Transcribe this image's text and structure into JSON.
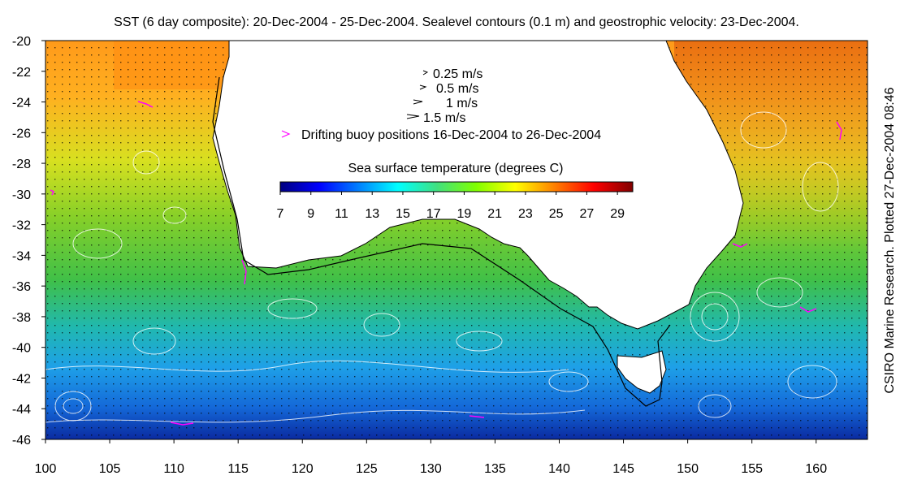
{
  "title": "SST (6 day composite): 20-Dec-2004 - 25-Dec-2004. Sealevel contours (0.1 m) and geostrophic velocity: 23-Dec-2004.",
  "credit": "CSIRO Marine Research. Plotted 27-Dec-2004 08:46",
  "map": {
    "lon_range": [
      100,
      164
    ],
    "lat_range": [
      -46,
      -20
    ],
    "lon_ticks": [
      100,
      105,
      110,
      115,
      120,
      125,
      130,
      135,
      140,
      145,
      150,
      155,
      160
    ],
    "lat_ticks": [
      -20,
      -22,
      -24,
      -26,
      -28,
      -30,
      -32,
      -34,
      -36,
      -38,
      -40,
      -42,
      -44,
      -46
    ]
  },
  "legend": {
    "velocity_scale": [
      {
        "label": "0.25 m/s",
        "value": 0.25
      },
      {
        "label": "0.5 m/s",
        "value": 0.5
      },
      {
        "label": "1 m/s",
        "value": 1
      },
      {
        "label": "1.5 m/s",
        "value": 1.5
      }
    ],
    "buoy_label": "Drifting buoy positions 16-Dec-2004 to 26-Dec-2004",
    "buoy_color": "#ff00ff"
  },
  "colorbar": {
    "title": "Sea surface temperature (degrees C)",
    "min": 7,
    "max": 30,
    "ticks": [
      7,
      9,
      11,
      13,
      15,
      17,
      19,
      21,
      23,
      25,
      27,
      29
    ],
    "colors": [
      "#00007f",
      "#0000ff",
      "#0080ff",
      "#00ffff",
      "#40e080",
      "#80ff00",
      "#ffff00",
      "#ff8000",
      "#ff0000",
      "#800000"
    ]
  }
}
